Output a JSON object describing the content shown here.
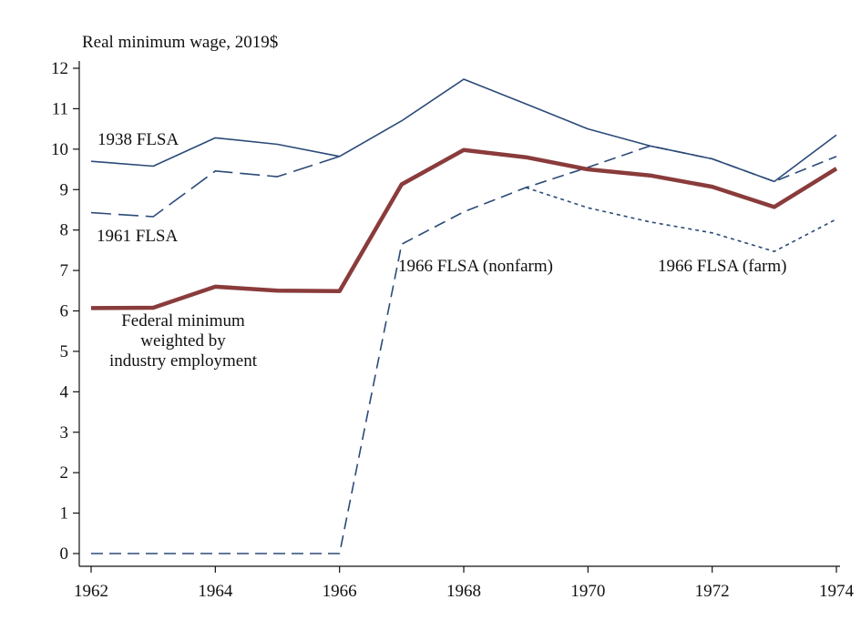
{
  "chart_data": {
    "type": "line",
    "y_label": "Real minimum wage, 2019$",
    "x": [
      1962,
      1963,
      1964,
      1965,
      1966,
      1967,
      1968,
      1969,
      1970,
      1971,
      1972,
      1973,
      1974
    ],
    "xlim": [
      1962,
      1974
    ],
    "xticks": [
      1962,
      1964,
      1966,
      1968,
      1970,
      1972,
      1974
    ],
    "ylim": [
      0,
      12
    ],
    "yticks": [
      0,
      1,
      2,
      3,
      4,
      5,
      6,
      7,
      8,
      9,
      10,
      11,
      12
    ],
    "grid": false,
    "series": [
      {
        "name": "1938 FLSA",
        "color": "#2b4a78",
        "style": "solid",
        "width": 1.6,
        "values": [
          9.7,
          9.58,
          10.28,
          10.12,
          9.82,
          10.7,
          11.73,
          11.12,
          10.5,
          10.08,
          9.76,
          9.2,
          10.35
        ]
      },
      {
        "name": "1961 FLSA",
        "color": "#2b4a78",
        "style": "longdash",
        "width": 1.6,
        "values": [
          8.43,
          8.33,
          9.46,
          9.32,
          9.82,
          null,
          null,
          null,
          null,
          null,
          null,
          null,
          null
        ]
      },
      {
        "name": "1966 FLSA (nonfarm)",
        "color": "#2b4a78",
        "style": "dash",
        "width": 1.6,
        "values": [
          0,
          0,
          0,
          0,
          0,
          7.65,
          8.45,
          9.05,
          9.55,
          10.08,
          9.76,
          9.2,
          9.82
        ]
      },
      {
        "name": "1966 FLSA (farm)",
        "color": "#2b4a78",
        "style": "dot",
        "width": 1.6,
        "values": [
          null,
          null,
          null,
          null,
          null,
          null,
          null,
          9.05,
          8.55,
          8.2,
          7.93,
          7.47,
          8.27
        ]
      },
      {
        "name": "Federal minimum\nweighted by\nindustry employment",
        "color": "#8a3b3b",
        "style": "solid",
        "width": 4.5,
        "values": [
          6.07,
          6.08,
          6.6,
          6.5,
          6.49,
          9.13,
          9.98,
          9.8,
          9.5,
          9.35,
          9.07,
          8.57,
          9.52
        ]
      }
    ]
  }
}
